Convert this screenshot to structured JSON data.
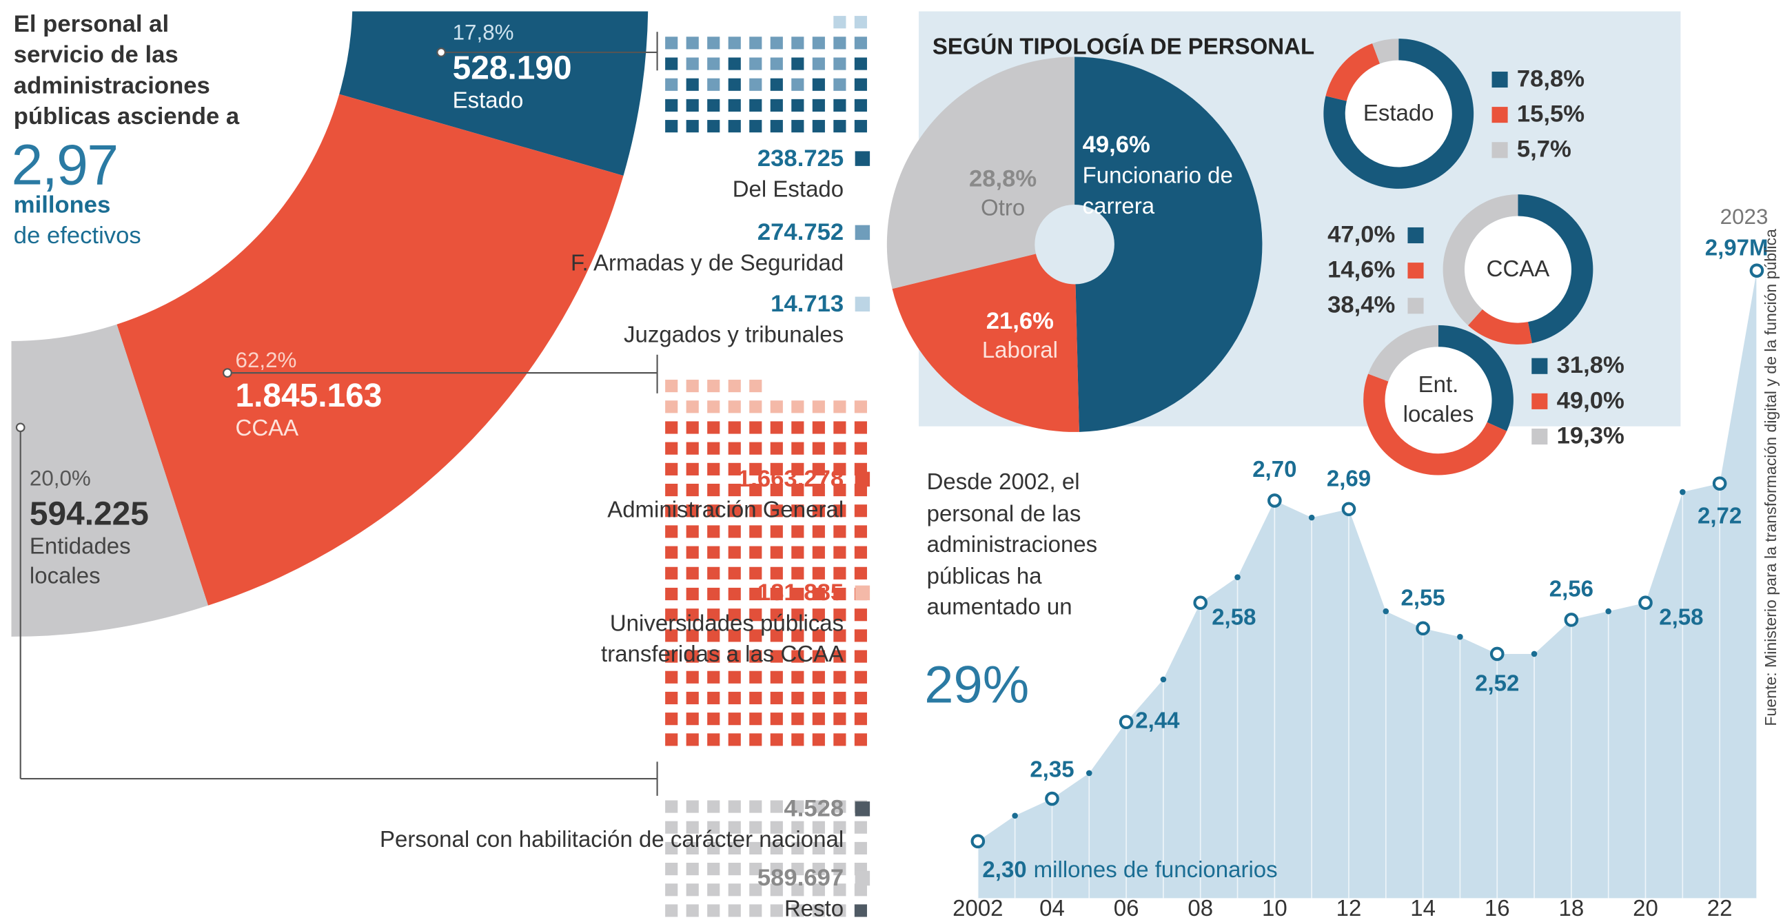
{
  "intro": {
    "lines": [
      "El personal al",
      "servicio de las",
      "administraciones",
      "públicas asciende a"
    ],
    "total": "2,97",
    "unit_lines": [
      "millones",
      "de efectivos"
    ]
  },
  "chart_data": [
    {
      "type": "fan",
      "categories": [
        "Estado",
        "CCAA",
        "Entidades locales"
      ],
      "values": [
        17.8,
        62.2,
        20.0
      ],
      "value_labels": [
        "17,8%",
        "62,2%",
        "20,0%"
      ],
      "count_labels": [
        "528.190",
        "1.845.163",
        "594.225"
      ],
      "colors": [
        "#17597c",
        "#ea533b",
        "#c8c8ca"
      ]
    },
    {
      "type": "pie",
      "title": "SEGÚN TIPOLOGÍA DE PERSONAL",
      "categories": [
        "Funcionario de carrera",
        "Laboral",
        "Otro"
      ],
      "values": [
        49.6,
        21.6,
        28.8
      ],
      "value_labels": [
        "49,6%",
        "21,6%",
        "28,8%"
      ],
      "colors": [
        "#17597c",
        "#ea533b",
        "#c8c8ca"
      ]
    },
    {
      "type": "donut",
      "title": "Estado",
      "values": [
        78.8,
        15.5,
        5.7
      ],
      "value_labels": [
        "78,8%",
        "15,5%",
        "5,7%"
      ],
      "colors": [
        "#17597c",
        "#ea533b",
        "#c8c8ca"
      ],
      "legend": "right"
    },
    {
      "type": "donut",
      "title": "CCAA",
      "values": [
        47.0,
        14.6,
        38.4
      ],
      "value_labels": [
        "47,0%",
        "14,6%",
        "38,4%"
      ],
      "colors": [
        "#17597c",
        "#ea533b",
        "#c8c8ca"
      ],
      "legend": "left"
    },
    {
      "type": "donut",
      "title": "Ent. locales",
      "values": [
        31.8,
        49.0,
        19.3
      ],
      "value_labels": [
        "31,8%",
        "49,0%",
        "19,3%"
      ],
      "colors": [
        "#17597c",
        "#ea533b",
        "#c8c8ca"
      ],
      "legend": "right"
    },
    {
      "type": "line",
      "x": [
        2002,
        2003,
        2004,
        2005,
        2006,
        2007,
        2008,
        2009,
        2010,
        2011,
        2012,
        2013,
        2014,
        2015,
        2016,
        2017,
        2018,
        2019,
        2020,
        2021,
        2022,
        2023
      ],
      "series": [
        {
          "color": "#1a6d93",
          "values": [
            2.3,
            2.33,
            2.35,
            2.38,
            2.44,
            2.49,
            2.58,
            2.61,
            2.7,
            2.68,
            2.69,
            2.57,
            2.55,
            2.54,
            2.52,
            2.52,
            2.56,
            2.57,
            2.58,
            2.71,
            2.72,
            2.97
          ],
          "value_labels": [
            "2,30",
            null,
            "2,35",
            null,
            "2,44",
            null,
            "2,58",
            null,
            "2,70",
            null,
            "2,69",
            null,
            "2,55",
            null,
            "2,52",
            null,
            "2,56",
            null,
            "2,58",
            null,
            "2,72",
            "2,97M"
          ]
        }
      ],
      "xticks": [
        2002,
        {
          "value": 2004,
          "label": "04"
        },
        {
          "value": 2006,
          "label": "06"
        },
        {
          "value": 2008,
          "label": "08"
        },
        {
          "value": 2010,
          "label": "10"
        },
        {
          "value": 2012,
          "label": "12"
        },
        {
          "value": 2014,
          "label": "14"
        },
        {
          "value": 2016,
          "label": "16"
        },
        {
          "value": 2018,
          "label": "18"
        },
        {
          "value": 2020,
          "label": "20"
        },
        {
          "value": 2022,
          "label": "22"
        }
      ],
      "unit_note": "millones de funcionarios",
      "area_color": "#c9deeb"
    }
  ],
  "breakdown": [
    [
      {
        "amount": "238.725",
        "label": "Del Estado",
        "color": "#17597c"
      },
      {
        "amount": "274.752",
        "label": "F. Armadas y de Seguridad",
        "color": "#6f9dbb"
      },
      {
        "amount": "14.713",
        "label": "Juzgados y tribunales",
        "color": "#bcd5e5"
      }
    ],
    [
      {
        "amount": "1.663.278",
        "label": "Administración General",
        "color": "#e2503a"
      },
      {
        "amount": "181.885",
        "label": "Universidades públicas transferidas a las CCAA",
        "color": "#f4b9a8"
      }
    ],
    [
      {
        "amount": "4.528",
        "label": "Personal con habilitación de carácter nacional",
        "color": "#4f5a64"
      },
      {
        "amount": "589.697",
        "label": "Resto",
        "color": "#cbcbcd"
      }
    ]
  ],
  "note": {
    "lines": [
      "Desde 2002, el",
      "personal de las",
      "administraciones",
      "públicas ha",
      "aumentado un"
    ],
    "highlight": "29%"
  },
  "source": "Fuente: Ministerio para la transformación digital y de la función pública"
}
